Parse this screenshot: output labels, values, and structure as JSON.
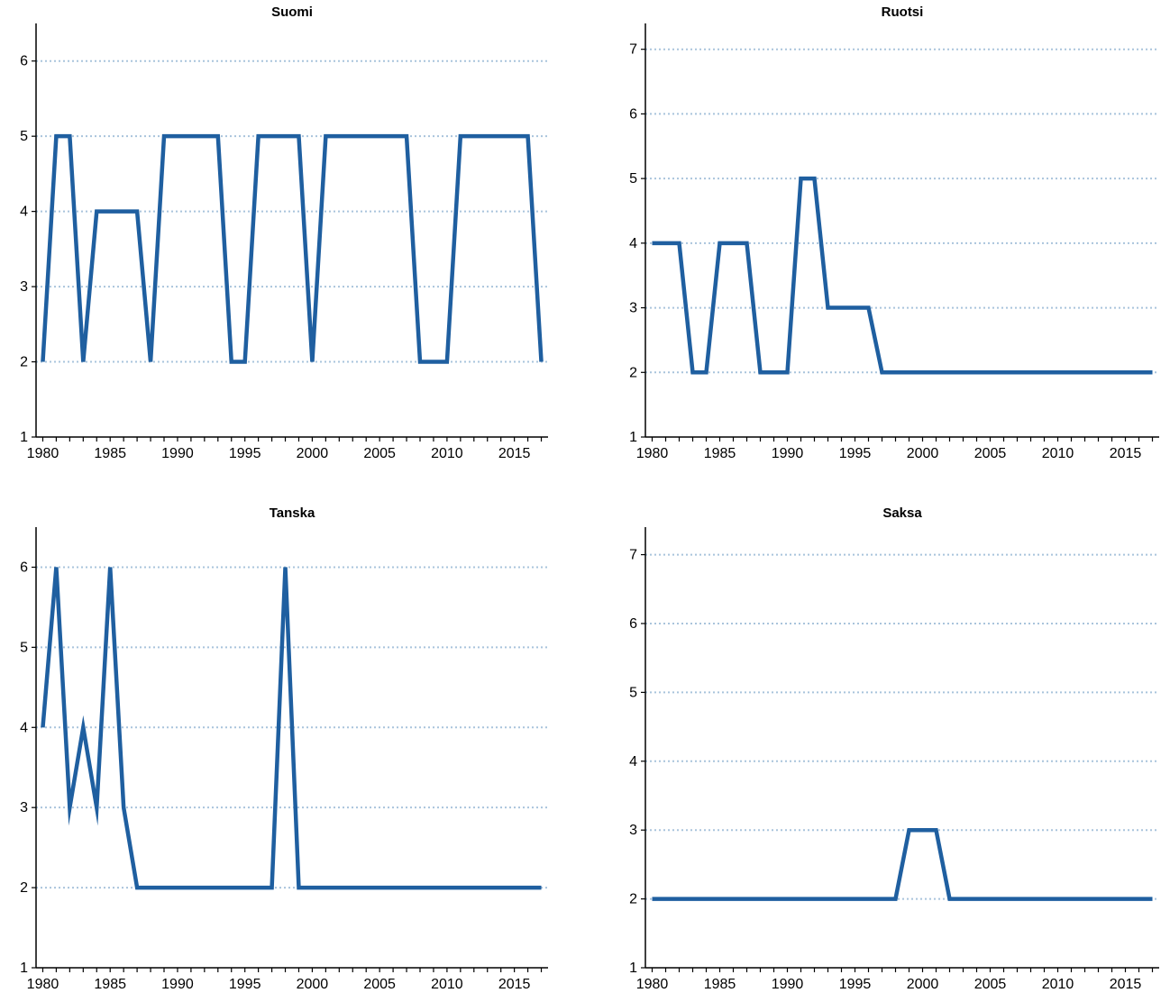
{
  "colors": {
    "series": "#1f5fa0",
    "grid": "#a9c4dc",
    "axis": "#000000"
  },
  "chart_data": [
    {
      "type": "line",
      "title": "Suomi",
      "xlabel": "",
      "ylabel": "",
      "x": [
        1980,
        1981,
        1982,
        1983,
        1984,
        1985,
        1986,
        1987,
        1988,
        1989,
        1990,
        1991,
        1992,
        1993,
        1994,
        1995,
        1996,
        1997,
        1998,
        1999,
        2000,
        2001,
        2002,
        2003,
        2004,
        2005,
        2006,
        2007,
        2008,
        2009,
        2010,
        2011,
        2012,
        2013,
        2014,
        2015,
        2016,
        2017
      ],
      "series": [
        {
          "values": [
            2,
            5,
            5,
            2,
            4,
            4,
            4,
            4,
            2,
            5,
            5,
            5,
            5,
            5,
            2,
            2,
            5,
            5,
            5,
            5,
            2,
            5,
            5,
            5,
            5,
            5,
            5,
            5,
            2,
            2,
            2,
            5,
            5,
            5,
            5,
            5,
            5,
            2
          ]
        }
      ],
      "xlim": [
        1979.5,
        2017.5
      ],
      "ylim": [
        1,
        6.5
      ],
      "yticks": [
        1,
        2,
        3,
        4,
        5,
        6
      ],
      "xticks": [
        1980,
        1985,
        1990,
        1995,
        2000,
        2005,
        2010,
        2015
      ],
      "grid": "horizontal dotted",
      "legend": "none"
    },
    {
      "type": "line",
      "title": "Ruotsi",
      "xlabel": "",
      "ylabel": "",
      "x": [
        1980,
        1981,
        1982,
        1983,
        1984,
        1985,
        1986,
        1987,
        1988,
        1989,
        1990,
        1991,
        1992,
        1993,
        1994,
        1995,
        1996,
        1997,
        1998,
        1999,
        2000,
        2001,
        2002,
        2003,
        2004,
        2005,
        2006,
        2007,
        2008,
        2009,
        2010,
        2011,
        2012,
        2013,
        2014,
        2015,
        2016,
        2017
      ],
      "series": [
        {
          "values": [
            4,
            4,
            4,
            2,
            2,
            4,
            4,
            4,
            2,
            2,
            2,
            5,
            5,
            3,
            3,
            3,
            3,
            2,
            2,
            2,
            2,
            2,
            2,
            2,
            2,
            2,
            2,
            2,
            2,
            2,
            2,
            2,
            2,
            2,
            2,
            2,
            2,
            2
          ]
        }
      ],
      "xlim": [
        1979.5,
        2017.5
      ],
      "ylim": [
        1,
        7.4
      ],
      "yticks": [
        1,
        2,
        3,
        4,
        5,
        6,
        7
      ],
      "xticks": [
        1980,
        1985,
        1990,
        1995,
        2000,
        2005,
        2010,
        2015
      ],
      "grid": "horizontal dotted",
      "legend": "none"
    },
    {
      "type": "line",
      "title": "Tanska",
      "xlabel": "",
      "ylabel": "",
      "x": [
        1980,
        1981,
        1982,
        1983,
        1984,
        1985,
        1986,
        1987,
        1988,
        1989,
        1990,
        1991,
        1992,
        1993,
        1994,
        1995,
        1996,
        1997,
        1998,
        1999,
        2000,
        2001,
        2002,
        2003,
        2004,
        2005,
        2006,
        2007,
        2008,
        2009,
        2010,
        2011,
        2012,
        2013,
        2014,
        2015,
        2016,
        2017
      ],
      "series": [
        {
          "values": [
            4,
            6,
            3,
            4,
            3,
            6,
            3,
            2,
            2,
            2,
            2,
            2,
            2,
            2,
            2,
            2,
            2,
            2,
            6,
            2,
            2,
            2,
            2,
            2,
            2,
            2,
            2,
            2,
            2,
            2,
            2,
            2,
            2,
            2,
            2,
            2,
            2,
            2
          ]
        }
      ],
      "xlim": [
        1979.5,
        2017.5
      ],
      "ylim": [
        1,
        6.5
      ],
      "yticks": [
        1,
        2,
        3,
        4,
        5,
        6
      ],
      "xticks": [
        1980,
        1985,
        1990,
        1995,
        2000,
        2005,
        2010,
        2015
      ],
      "grid": "horizontal dotted",
      "legend": "none"
    },
    {
      "type": "line",
      "title": "Saksa",
      "xlabel": "",
      "ylabel": "",
      "x": [
        1980,
        1981,
        1982,
        1983,
        1984,
        1985,
        1986,
        1987,
        1988,
        1989,
        1990,
        1991,
        1992,
        1993,
        1994,
        1995,
        1996,
        1997,
        1998,
        1999,
        2000,
        2001,
        2002,
        2003,
        2004,
        2005,
        2006,
        2007,
        2008,
        2009,
        2010,
        2011,
        2012,
        2013,
        2014,
        2015,
        2016,
        2017
      ],
      "series": [
        {
          "values": [
            2,
            2,
            2,
            2,
            2,
            2,
            2,
            2,
            2,
            2,
            2,
            2,
            2,
            2,
            2,
            2,
            2,
            2,
            2,
            3,
            3,
            3,
            2,
            2,
            2,
            2,
            2,
            2,
            2,
            2,
            2,
            2,
            2,
            2,
            2,
            2,
            2,
            2
          ]
        }
      ],
      "xlim": [
        1979.5,
        2017.5
      ],
      "ylim": [
        1,
        7.4
      ],
      "yticks": [
        1,
        2,
        3,
        4,
        5,
        6,
        7
      ],
      "xticks": [
        1980,
        1985,
        1990,
        1995,
        2000,
        2005,
        2010,
        2015
      ],
      "grid": "horizontal dotted",
      "legend": "none"
    }
  ]
}
